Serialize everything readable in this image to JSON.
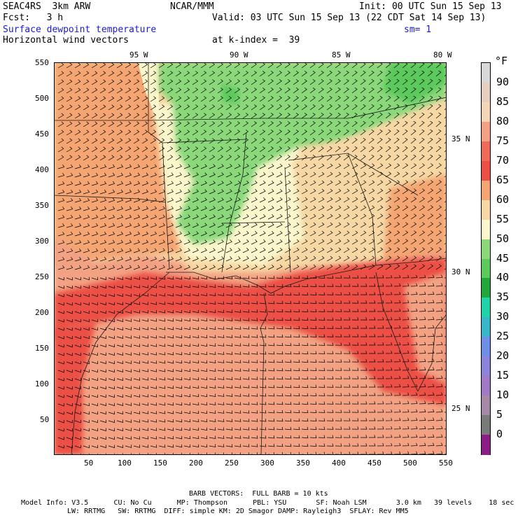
{
  "header": {
    "model": "SEAC4RS  3km ARW",
    "org": "NCAR/MMM",
    "init": "Init: 00 UTC Sun 15 Sep 13",
    "fcst": "Fcst:   3 h",
    "valid": "Valid: 03 UTC Sun 15 Sep 13 (22 CDT Sat 14 Sep 13)",
    "field": "Surface dewpoint temperature",
    "sm": "sm= 1",
    "vectors": "Horizontal wind vectors",
    "kindex": "at k-index =  39"
  },
  "map": {
    "top_lon_labels": [
      "95 W",
      "90 W",
      "85 W",
      "80 W"
    ],
    "right_lat_labels": [
      "35 N",
      "30 N",
      "25 N"
    ],
    "left_ticks": [
      "550",
      "500",
      "450",
      "400",
      "350",
      "300",
      "250",
      "200",
      "150",
      "100",
      "50"
    ],
    "bottom_ticks": [
      "50",
      "100",
      "150",
      "200",
      "250",
      "300",
      "350",
      "400",
      "450",
      "500",
      "550"
    ]
  },
  "colorbar": {
    "unit": "°F",
    "labels": [
      "90",
      "85",
      "80",
      "75",
      "70",
      "65",
      "60",
      "55",
      "50",
      "45",
      "40",
      "35",
      "30",
      "25",
      "20",
      "15",
      "10",
      "5",
      "0"
    ],
    "colors": [
      "#d8d8d8",
      "#e6cfc0",
      "#f4d5b6",
      "#f2a283",
      "#ee6b58",
      "#ec4f44",
      "#f4a572",
      "#f7d8a4",
      "#fbf6cb",
      "#8ad87a",
      "#5cc95b",
      "#20a83b",
      "#20d3a8",
      "#38b7c8",
      "#6f8fe6",
      "#8b84d8",
      "#a07ac7",
      "#a58aa8",
      "#7a7a7a",
      "#8a1e86"
    ]
  },
  "footer": {
    "barb": "BARB VECTORS:  FULL BARB = 10 kts",
    "line1": "Model Info: V3.5      CU: No Cu      MP: Thompson      PBL: YSU       SF: Noah LSM       3.0 km   39 levels    18 sec",
    "line2": "LW: RRTMG   SW: RRTMG  DIFF: simple KM: 2D Smagor DAMP: Rayleigh3  SFLAY: Rev MM5"
  }
}
